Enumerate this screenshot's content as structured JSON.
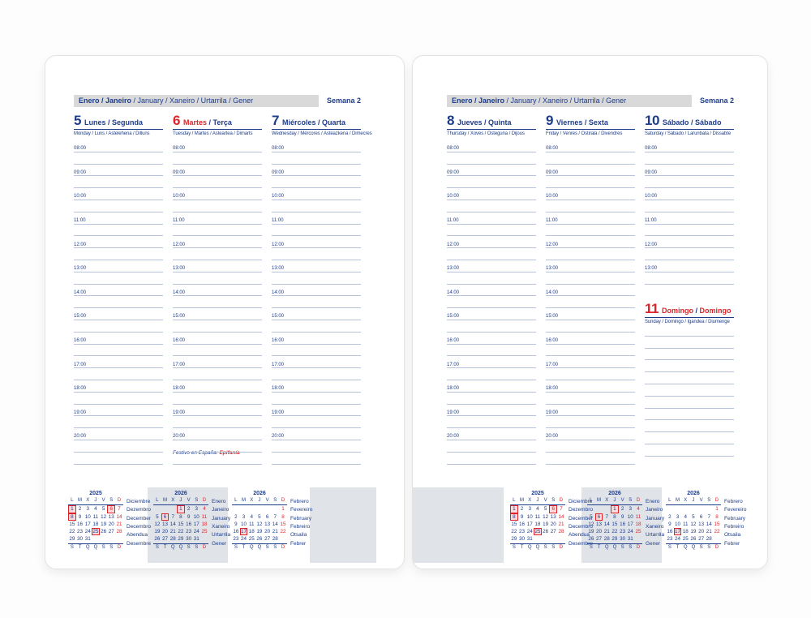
{
  "header": {
    "months_bold": "Enero / Janeiro",
    "months_rest": " / January / Xaneiro / Urtarrila / Gener",
    "week_label": "Semana 2"
  },
  "note": {
    "prefix": "Festivo en España: ",
    "holiday": "Epifanía"
  },
  "days": [
    {
      "num": "5",
      "name_es": "Lunes",
      "name_pt": "Segunda",
      "subtitle": "Monday / Luns / Astelehena / Dilluns",
      "red_num": false,
      "red_es": false,
      "red_pt": false,
      "hours": [
        "08:00",
        "09:00",
        "10:00",
        "11:00",
        "12:00",
        "13:00",
        "14:00",
        "15:00",
        "16:00",
        "17:00",
        "18:00",
        "19:00",
        "20:00"
      ],
      "extra_lines": 1
    },
    {
      "num": "6",
      "name_es": "Martes",
      "name_pt": "Terça",
      "subtitle": "Tuesday / Martes / Asteartea / Dimarts",
      "red_num": true,
      "red_es": true,
      "red_pt": false,
      "hours": [
        "08:00",
        "09:00",
        "10:00",
        "11:00",
        "12:00",
        "13:00",
        "14:00",
        "15:00",
        "16:00",
        "17:00",
        "18:00",
        "19:00",
        "20:00"
      ],
      "extra_lines": 1
    },
    {
      "num": "7",
      "name_es": "Miércoles",
      "name_pt": "Quarta",
      "subtitle": "Wednesday / Mércores / Asteazkena / Dimecres",
      "red_num": false,
      "red_es": false,
      "red_pt": false,
      "hours": [
        "08:00",
        "09:00",
        "10:00",
        "11:00",
        "12:00",
        "13:00",
        "14:00",
        "15:00",
        "16:00",
        "17:00",
        "18:00",
        "19:00",
        "20:00"
      ],
      "extra_lines": 1
    },
    {
      "num": "8",
      "name_es": "Jueves",
      "name_pt": "Quinta",
      "subtitle": "Thursday / Xoves / Osteguna / Dijous",
      "red_num": false,
      "red_es": false,
      "red_pt": false,
      "hours": [
        "08:00",
        "09:00",
        "10:00",
        "11:00",
        "12:00",
        "13:00",
        "14:00",
        "15:00",
        "16:00",
        "17:00",
        "18:00",
        "19:00",
        "20:00"
      ],
      "extra_lines": 1
    },
    {
      "num": "9",
      "name_es": "Viernes",
      "name_pt": "Sexta",
      "subtitle": "Friday / Venres / Ostirala / Divendres",
      "red_num": false,
      "red_es": false,
      "red_pt": false,
      "hours": [
        "08:00",
        "09:00",
        "10:00",
        "11:00",
        "12:00",
        "13:00",
        "14:00",
        "15:00",
        "16:00",
        "17:00",
        "18:00",
        "19:00",
        "20:00"
      ],
      "extra_lines": 1
    },
    {
      "num": "10",
      "name_es": "Sábado",
      "name_pt": "Sábado",
      "subtitle": "Saturday / Sábado / Larunbata / Dissabte",
      "red_num": false,
      "red_es": false,
      "red_pt": false,
      "hours": [
        "08:00",
        "09:00",
        "10:00",
        "11:00",
        "12:00",
        "13:00"
      ],
      "extra_lines": 0
    },
    {
      "num": "11",
      "name_es": "Domingo",
      "name_pt": "Domingo",
      "subtitle": "Sunday / Domingo / Igandea / Diumenge",
      "red_num": true,
      "red_es": true,
      "red_pt": true,
      "hours": [],
      "plain_lines": 11,
      "extra_lines": 0
    }
  ],
  "minicalendars": [
    {
      "year": "2025",
      "dow_top": [
        "L",
        "M",
        "X",
        "J",
        "V",
        "S",
        "D"
      ],
      "dow_bottom": [
        "S",
        "T",
        "Q",
        "Q",
        "S",
        "S",
        "D"
      ],
      "weeks": [
        [
          1,
          2,
          3,
          4,
          5,
          6,
          7
        ],
        [
          8,
          9,
          10,
          11,
          12,
          13,
          14
        ],
        [
          15,
          16,
          17,
          18,
          19,
          20,
          21
        ],
        [
          22,
          23,
          24,
          25,
          26,
          27,
          28
        ],
        [
          29,
          30,
          31,
          null,
          null,
          null,
          null
        ]
      ],
      "red_days": [
        6,
        7,
        14,
        21,
        28
      ],
      "boxed_days": [
        1,
        6,
        8,
        25
      ],
      "labels": [
        "Diciembre",
        "Dezembro",
        "December",
        "Decembro",
        "Abendua",
        "Desembre"
      ]
    },
    {
      "year": "2026",
      "dow_top": [
        "L",
        "M",
        "X",
        "J",
        "V",
        "S",
        "D"
      ],
      "dow_bottom": [
        "S",
        "T",
        "Q",
        "Q",
        "S",
        "S",
        "D"
      ],
      "weeks": [
        [
          null,
          null,
          null,
          1,
          2,
          3,
          4
        ],
        [
          5,
          6,
          7,
          8,
          9,
          10,
          11
        ],
        [
          12,
          13,
          14,
          15,
          16,
          17,
          18
        ],
        [
          19,
          20,
          21,
          22,
          23,
          24,
          25
        ],
        [
          26,
          27,
          28,
          29,
          30,
          31,
          null
        ]
      ],
      "red_days": [
        4,
        11,
        18,
        25
      ],
      "boxed_days": [
        1,
        6
      ],
      "labels": [
        "Enero",
        "Janeiro",
        "January",
        "Xaneiro",
        "Urtarrila",
        "Gener"
      ]
    },
    {
      "year": "2026",
      "dow_top": [
        "L",
        "M",
        "X",
        "J",
        "V",
        "S",
        "D"
      ],
      "dow_bottom": [
        "S",
        "T",
        "Q",
        "Q",
        "S",
        "S",
        "D"
      ],
      "weeks": [
        [
          null,
          null,
          null,
          null,
          null,
          null,
          1
        ],
        [
          2,
          3,
          4,
          5,
          6,
          7,
          8
        ],
        [
          9,
          10,
          11,
          12,
          13,
          14,
          15
        ],
        [
          16,
          17,
          18,
          19,
          20,
          21,
          22
        ],
        [
          23,
          24,
          25,
          26,
          27,
          28,
          null
        ]
      ],
      "red_days": [
        1,
        8,
        15,
        22
      ],
      "boxed_days": [
        17
      ],
      "labels": [
        "Febrero",
        "Fevereiro",
        "February",
        "Febreiro",
        "Otsaila",
        "Febrer"
      ]
    }
  ]
}
